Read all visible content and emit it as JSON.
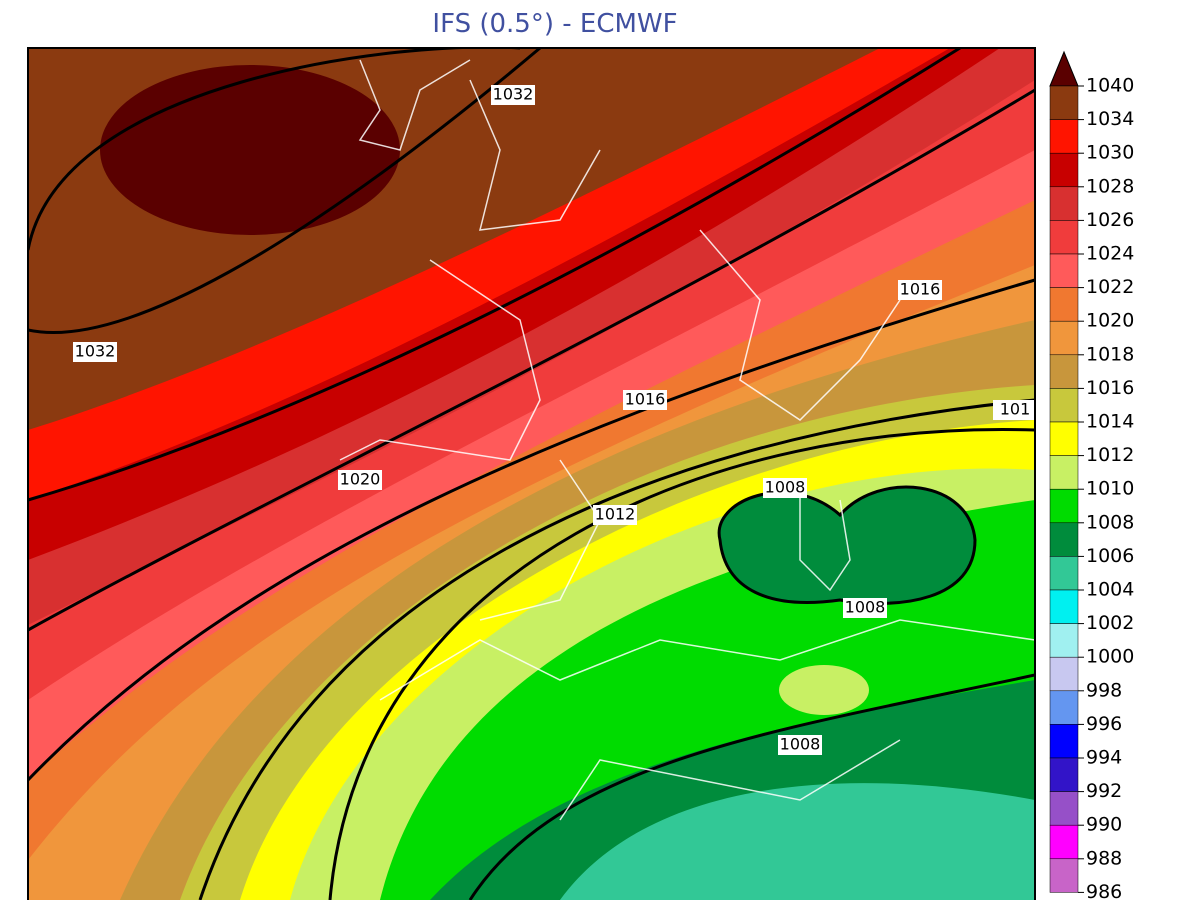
{
  "title": "IFS (0.5°) - ECMWF",
  "legend": {
    "items": [
      {
        "label": "1040",
        "color": "#5a0000"
      },
      {
        "label": "1034",
        "color": "#8b3a10"
      },
      {
        "label": "1030",
        "color": "#ff1400"
      },
      {
        "label": "1028",
        "color": "#c80000"
      },
      {
        "label": "1026",
        "color": "#d83030"
      },
      {
        "label": "1024",
        "color": "#f03c3c"
      },
      {
        "label": "1022",
        "color": "#ff5a5a"
      },
      {
        "label": "1020",
        "color": "#f07830"
      },
      {
        "label": "1018",
        "color": "#f0963c"
      },
      {
        "label": "1016",
        "color": "#c8963c"
      },
      {
        "label": "1014",
        "color": "#c8c83c"
      },
      {
        "label": "1012",
        "color": "#ffff00"
      },
      {
        "label": "1010",
        "color": "#c8f064"
      },
      {
        "label": "1008",
        "color": "#00dc00"
      },
      {
        "label": "1006",
        "color": "#008c3c"
      },
      {
        "label": "1004",
        "color": "#32c896"
      },
      {
        "label": "1002",
        "color": "#00f0f0"
      },
      {
        "label": "1000",
        "color": "#a0f0f0"
      },
      {
        "label": "998",
        "color": "#c8c8f0"
      },
      {
        "label": "996",
        "color": "#6496f0"
      },
      {
        "label": "994",
        "color": "#0000ff"
      },
      {
        "label": "992",
        "color": "#3214c8"
      },
      {
        "label": "990",
        "color": "#9650c8"
      },
      {
        "label": "988",
        "color": "#ff00ff"
      },
      {
        "label": "986",
        "color": "#c864c8"
      }
    ]
  },
  "contour_labels": [
    "1032",
    "1032",
    "1020",
    "1016",
    "1016",
    "101",
    "1012",
    "1008",
    "1008",
    "1008"
  ]
}
